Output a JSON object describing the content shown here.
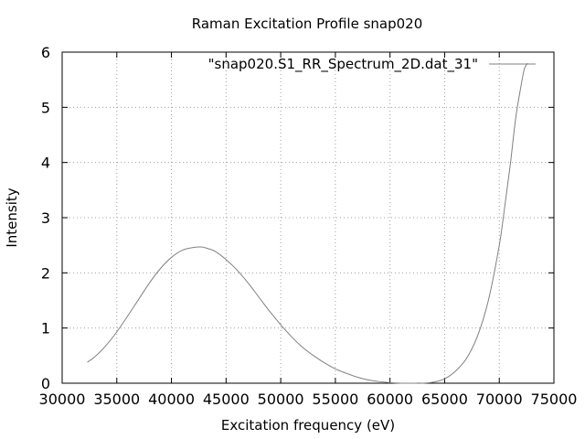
{
  "chart_data": {
    "type": "line",
    "title": "Raman Excitation Profile snap020",
    "xlabel": "Excitation frequency (eV)",
    "ylabel": "Intensity",
    "xlim": [
      30000,
      75000
    ],
    "ylim": [
      0,
      6
    ],
    "xticks": [
      "30000",
      "35000",
      "40000",
      "45000",
      "50000",
      "55000",
      "60000",
      "65000",
      "70000",
      "75000"
    ],
    "yticks": [
      "0",
      "1",
      "2",
      "3",
      "4",
      "5",
      "6"
    ],
    "grid": true,
    "legend_position": "top-right",
    "series": [
      {
        "name": "\"snap020.S1_RR_Spectrum_2D.dat_31\"",
        "color": "#808080",
        "x": [
          32300,
          33000,
          34000,
          35000,
          36000,
          37000,
          38000,
          39000,
          40000,
          41000,
          42000,
          42600,
          43000,
          44000,
          45000,
          46000,
          47000,
          48000,
          49000,
          50000,
          51000,
          52000,
          53000,
          54000,
          55000,
          56000,
          57000,
          58000,
          59000,
          60000,
          61000,
          62000,
          63000,
          64000,
          65000,
          66000,
          67000,
          68000,
          69000,
          70000,
          70500,
          71000,
          71500,
          72000,
          72300,
          72600
        ],
        "y": [
          0.38,
          0.48,
          0.68,
          0.93,
          1.22,
          1.52,
          1.82,
          2.08,
          2.28,
          2.41,
          2.46,
          2.47,
          2.46,
          2.39,
          2.24,
          2.05,
          1.82,
          1.56,
          1.3,
          1.06,
          0.84,
          0.65,
          0.5,
          0.37,
          0.26,
          0.18,
          0.11,
          0.06,
          0.03,
          0.01,
          0.0,
          0.0,
          0.0,
          0.02,
          0.08,
          0.22,
          0.45,
          0.85,
          1.5,
          2.5,
          3.2,
          3.95,
          4.8,
          5.4,
          5.7,
          5.8
        ]
      }
    ]
  }
}
